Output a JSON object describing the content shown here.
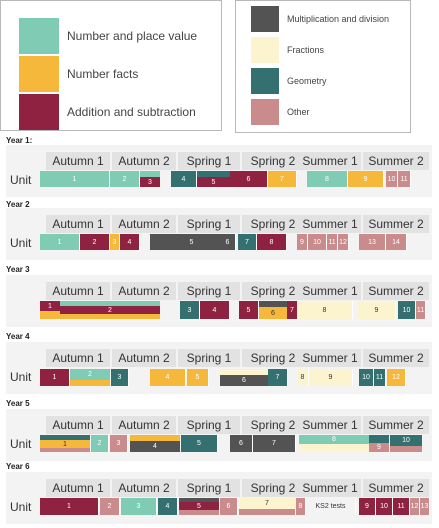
{
  "colors": {
    "number": "#7fcbb4",
    "facts": "#f6b83a",
    "addition": "#8e2240",
    "multiplication": "#535353",
    "fractions": "#fbf4cf",
    "geometry": "#33706f",
    "other": "#c98b8b"
  },
  "legend": {
    "left": [
      {
        "label": "Number and place value",
        "color": "number"
      },
      {
        "label": "Number facts",
        "color": "facts"
      },
      {
        "label": "Addition and subtraction",
        "color": "addition"
      }
    ],
    "right": [
      {
        "label": "Multiplication and division",
        "color": "multiplication"
      },
      {
        "label": "Fractions",
        "color": "fractions"
      },
      {
        "label": "Geometry",
        "color": "geometry"
      },
      {
        "label": "Other",
        "color": "other"
      }
    ]
  },
  "terms": [
    "Autumn 1",
    "Autumn 2",
    "Spring 1",
    "Spring 2",
    "Summer 1",
    "Summer 2"
  ],
  "unit_label": "Unit",
  "years": [
    {
      "label": "Year 1:",
      "units": [
        {
          "n": "1",
          "color": "number"
        },
        {
          "n": "2",
          "color": "number"
        },
        {
          "n": "3",
          "color": "addition"
        },
        {
          "n": "4",
          "color": "geometry"
        },
        {
          "n": "5",
          "color": "addition"
        },
        {
          "n": "6",
          "color": "addition"
        },
        {
          "n": "7",
          "color": "facts"
        },
        {
          "n": "8",
          "color": "number"
        },
        {
          "n": "9",
          "color": "facts"
        },
        {
          "n": "10",
          "color": "other"
        },
        {
          "n": "11",
          "color": "other"
        }
      ]
    },
    {
      "label": "Year 2",
      "units": [
        {
          "n": "1",
          "color": "number"
        },
        {
          "n": "2",
          "color": "addition"
        },
        {
          "n": "3",
          "color": "facts"
        },
        {
          "n": "4",
          "color": "addition"
        },
        {
          "n": "5",
          "color": "multiplication"
        },
        {
          "n": "6",
          "color": "multiplication"
        },
        {
          "n": "7",
          "color": "geometry"
        },
        {
          "n": "8",
          "color": "addition"
        },
        {
          "n": "9",
          "color": "other"
        },
        {
          "n": "10",
          "color": "other"
        },
        {
          "n": "11",
          "color": "other"
        },
        {
          "n": "12",
          "color": "other"
        },
        {
          "n": "13",
          "color": "other"
        },
        {
          "n": "14",
          "color": "other"
        }
      ]
    },
    {
      "label": "Year 3",
      "units": [
        {
          "n": "1",
          "color": "addition"
        },
        {
          "n": "2",
          "color": "addition"
        },
        {
          "n": "3",
          "color": "geometry"
        },
        {
          "n": "4",
          "color": "addition"
        },
        {
          "n": "5",
          "color": "addition"
        },
        {
          "n": "6",
          "color": "facts"
        },
        {
          "n": "7",
          "color": "addition"
        },
        {
          "n": "8",
          "color": "fractions"
        },
        {
          "n": "9",
          "color": "fractions"
        },
        {
          "n": "10",
          "color": "geometry"
        },
        {
          "n": "11",
          "color": "other"
        }
      ]
    },
    {
      "label": "Year 4",
      "units": [
        {
          "n": "1",
          "color": "addition"
        },
        {
          "n": "2",
          "color": "number"
        },
        {
          "n": "3",
          "color": "geometry"
        },
        {
          "n": "4",
          "color": "facts"
        },
        {
          "n": "5",
          "color": "facts"
        },
        {
          "n": "6",
          "color": "multiplication"
        },
        {
          "n": "7",
          "color": "geometry"
        },
        {
          "n": "8",
          "color": "fractions"
        },
        {
          "n": "9",
          "color": "fractions"
        },
        {
          "n": "10",
          "color": "geometry"
        },
        {
          "n": "11",
          "color": "geometry"
        },
        {
          "n": "12",
          "color": "facts"
        }
      ]
    },
    {
      "label": "Year 5",
      "units": [
        {
          "n": "1",
          "color": "facts"
        },
        {
          "n": "2",
          "color": "number"
        },
        {
          "n": "3",
          "color": "other"
        },
        {
          "n": "4",
          "color": "multiplication"
        },
        {
          "n": "5",
          "color": "geometry"
        },
        {
          "n": "6",
          "color": "multiplication"
        },
        {
          "n": "7",
          "color": "multiplication"
        },
        {
          "n": "8",
          "color": "number"
        },
        {
          "n": "9",
          "color": "other"
        },
        {
          "n": "10",
          "color": "other"
        }
      ]
    },
    {
      "label": "Year 6",
      "units": [
        {
          "n": "1",
          "color": "addition"
        },
        {
          "n": "2",
          "color": "other"
        },
        {
          "n": "3",
          "color": "number"
        },
        {
          "n": "4",
          "color": "geometry"
        },
        {
          "n": "5",
          "color": "addition"
        },
        {
          "n": "6",
          "color": "other"
        },
        {
          "n": "7",
          "color": "fractions"
        },
        {
          "n": "8",
          "color": "other"
        },
        {
          "n": "KS2 tests",
          "color": "blank"
        },
        {
          "n": "9",
          "color": "addition"
        },
        {
          "n": "10",
          "color": "addition"
        },
        {
          "n": "11",
          "color": "addition"
        },
        {
          "n": "12",
          "color": "other"
        },
        {
          "n": "13",
          "color": "other"
        }
      ]
    }
  ]
}
